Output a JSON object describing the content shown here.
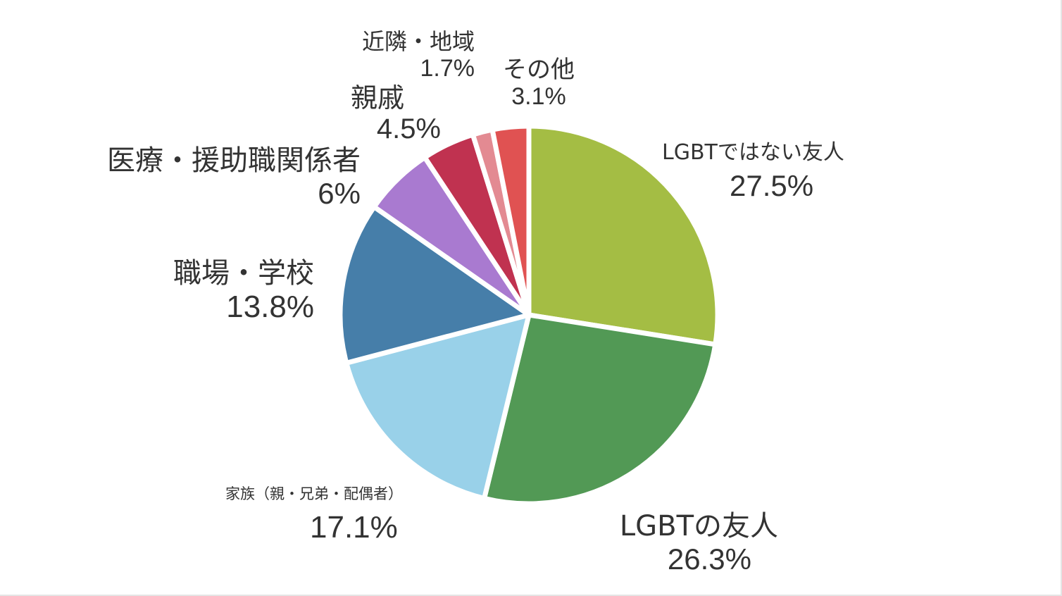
{
  "chart_data": {
    "type": "pie",
    "title": "",
    "legend": "none",
    "slices": [
      {
        "label": "LGBTではない友人",
        "value": 27.5,
        "value_label": "27.5%",
        "color": "#a4bd44"
      },
      {
        "label": "LGBTの友人",
        "value": 26.3,
        "value_label": "26.3%",
        "color": "#529955"
      },
      {
        "label": "家族（親・兄弟・配偶者）",
        "value": 17.1,
        "value_label": "17.1%",
        "color": "#99d1e9"
      },
      {
        "label": "職場・学校",
        "value": 13.8,
        "value_label": "13.8%",
        "color": "#467ea9"
      },
      {
        "label": "医療・援助職関係者",
        "value": 6,
        "value_label": "6%",
        "color": "#a97ad0"
      },
      {
        "label": "親戚",
        "value": 4.5,
        "value_label": "4.5%",
        "color": "#c03250"
      },
      {
        "label": "近隣・地域",
        "value": 1.7,
        "value_label": "1.7%",
        "color": "#e38a92"
      },
      {
        "label": "その他",
        "value": 3.1,
        "value_label": "3.1%",
        "color": "#e05252"
      }
    ]
  }
}
